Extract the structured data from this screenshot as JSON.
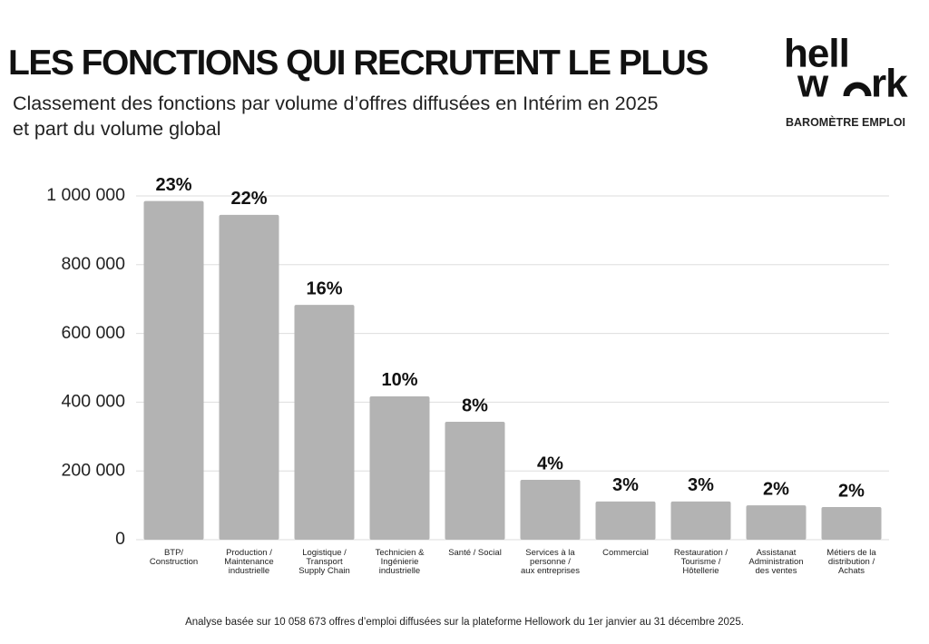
{
  "header": {
    "title": "LES FONCTIONS QUI RECRUTENT LE PLUS",
    "subtitle": "Classement des fonctions par volume d’offres diffusées en Intérim en 2025\net part du volume global",
    "logo_top": "hell",
    "logo_bottom": [
      "w",
      "rk"
    ],
    "logo_caption": "BAROMÈTRE EMPLOI"
  },
  "chart_data": {
    "type": "bar",
    "categories": [
      "BTP/\nConstruction",
      "Production /\nMaintenance\nindustrielle",
      "Logistique /\nTransport\nSupply Chain",
      "Technicien &\nIngénierie\nindustrielle",
      "Santé / Social",
      "Services à la\npersonne /\naux entreprises",
      "Commercial",
      "Restauration /\nTourisme /\nHôtellerie",
      "Assistanat\nAdministration\ndes ventes",
      "Métiers de la\ndistribution /\nAchats"
    ],
    "values": [
      985000,
      945000,
      683000,
      417000,
      343000,
      174000,
      111000,
      111000,
      100000,
      95000
    ],
    "share_labels": [
      "23%",
      "22%",
      "16%",
      "10%",
      "8%",
      "4%",
      "3%",
      "3%",
      "2%",
      "2%"
    ],
    "color": "#b3b3b3",
    "ylim": [
      0,
      1000000
    ],
    "yticks": [
      0,
      {
        "value": 200000,
        "label": "200 000"
      },
      {
        "value": 400000,
        "label": "400 000"
      },
      {
        "value": 600000,
        "label": "600 000"
      },
      {
        "value": 800000,
        "label": "800 000"
      },
      {
        "value": 1000000,
        "label": "1 000 000"
      }
    ],
    "grid": true
  },
  "footnote": "Analyse basée sur 10 058 673 offres d’emploi diffusées sur la plateforme Hellowork du 1er janvier au 31 décembre 2025."
}
